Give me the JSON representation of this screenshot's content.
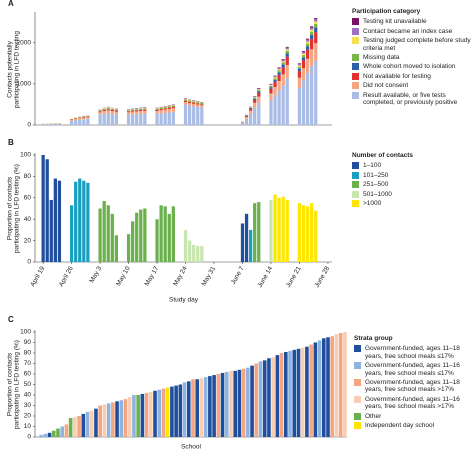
{
  "chart_data": [
    {
      "type": "stacked_bar",
      "panel_label": "A",
      "ylabel": [
        "Contacts potentially",
        "participating in LFD testing"
      ],
      "legend_title": "Participation category",
      "x": [
        0,
        1,
        2,
        3,
        4,
        7,
        8,
        9,
        10,
        11,
        14,
        15,
        16,
        17,
        18,
        21,
        22,
        23,
        24,
        25,
        28,
        29,
        30,
        31,
        32,
        35,
        36,
        37,
        38,
        39,
        49,
        50,
        51,
        52,
        53,
        56,
        57,
        58,
        59,
        60,
        63,
        64,
        65,
        66,
        67
      ],
      "xlim": [
        -2,
        71
      ],
      "ylim": [
        0,
        2700
      ],
      "yticks": [
        0,
        1000,
        2000
      ],
      "series": [
        {
          "name": "Testing kit unavailable",
          "color": "#7a1060",
          "values": [
            0,
            0,
            0,
            0,
            0,
            0,
            0,
            0,
            2,
            2,
            0,
            0,
            5,
            0,
            0,
            5,
            5,
            5,
            5,
            5,
            5,
            5,
            5,
            5,
            5,
            5,
            5,
            5,
            5,
            5,
            0,
            0,
            5,
            10,
            15,
            10,
            15,
            20,
            20,
            20,
            20,
            20,
            20,
            30,
            30
          ]
        },
        {
          "name": "Contact became an index case",
          "color": "#a070c0",
          "values": [
            0,
            0,
            1,
            1,
            1,
            0,
            3,
            5,
            5,
            5,
            10,
            10,
            10,
            10,
            10,
            10,
            10,
            10,
            10,
            10,
            10,
            10,
            10,
            10,
            10,
            10,
            10,
            10,
            10,
            10,
            0,
            5,
            5,
            10,
            15,
            20,
            20,
            25,
            30,
            40,
            30,
            40,
            50,
            50,
            50
          ]
        },
        {
          "name": "Testing judged complete before study criteria met",
          "color": "#f5e050",
          "values": [
            0,
            0,
            1,
            1,
            1,
            5,
            5,
            5,
            6,
            6,
            10,
            15,
            15,
            15,
            10,
            10,
            10,
            10,
            10,
            15,
            10,
            10,
            10,
            10,
            10,
            15,
            10,
            10,
            10,
            10,
            0,
            5,
            10,
            15,
            20,
            20,
            25,
            30,
            30,
            40,
            30,
            40,
            50,
            50,
            60
          ]
        },
        {
          "name": "Missing data",
          "color": "#7ab648",
          "values": [
            2,
            2,
            2,
            2,
            2,
            10,
            10,
            10,
            12,
            12,
            25,
            25,
            25,
            25,
            25,
            20,
            25,
            25,
            25,
            25,
            25,
            25,
            30,
            30,
            30,
            30,
            30,
            30,
            30,
            30,
            5,
            10,
            15,
            25,
            30,
            30,
            40,
            45,
            50,
            60,
            50,
            60,
            70,
            80,
            90
          ]
        },
        {
          "name": "Whole cohort moved to isolation",
          "color": "#2b5fa8",
          "values": [
            0,
            0,
            0,
            0,
            0,
            0,
            0,
            0,
            0,
            0,
            0,
            0,
            0,
            0,
            0,
            0,
            0,
            0,
            0,
            0,
            0,
            0,
            0,
            0,
            0,
            0,
            0,
            0,
            0,
            0,
            0,
            10,
            20,
            30,
            40,
            40,
            50,
            60,
            70,
            80,
            60,
            70,
            80,
            100,
            110
          ]
        },
        {
          "name": "Not available for testing",
          "color": "#e03030",
          "values": [
            3,
            3,
            3,
            4,
            4,
            10,
            12,
            15,
            15,
            15,
            25,
            30,
            30,
            30,
            30,
            25,
            25,
            30,
            30,
            30,
            30,
            30,
            30,
            35,
            35,
            30,
            30,
            30,
            25,
            25,
            10,
            25,
            45,
            70,
            90,
            110,
            130,
            150,
            170,
            200,
            160,
            190,
            220,
            250,
            270
          ]
        },
        {
          "name": "Did not consent",
          "color": "#f4a582",
          "values": [
            5,
            5,
            6,
            7,
            7,
            25,
            30,
            35,
            40,
            40,
            60,
            70,
            75,
            70,
            65,
            60,
            65,
            65,
            70,
            70,
            70,
            75,
            80,
            85,
            90,
            60,
            55,
            55,
            50,
            50,
            15,
            45,
            80,
            120,
            150,
            170,
            200,
            230,
            270,
            320,
            250,
            300,
            350,
            400,
            430
          ]
        },
        {
          "name": "Result available, or five tests completed, or previously positive",
          "color": "#a9bde6",
          "values": [
            20,
            20,
            22,
            25,
            25,
            100,
            120,
            130,
            140,
            150,
            250,
            270,
            280,
            270,
            260,
            250,
            260,
            265,
            270,
            275,
            270,
            285,
            295,
            305,
            320,
            500,
            480,
            460,
            450,
            430,
            50,
            150,
            270,
            420,
            540,
            600,
            720,
            840,
            960,
            1140,
            900,
            1080,
            1260,
            1440,
            1560
          ]
        }
      ]
    },
    {
      "type": "bar",
      "panel_label": "B",
      "ylabel": [
        "Proportion of contacts",
        "participating in LFD testing (%)"
      ],
      "xlabel": "Study day",
      "legend_title": "Number of contacts",
      "legend": [
        {
          "name": "1–100",
          "color": "#1f4e9c"
        },
        {
          "name": "101–250",
          "color": "#1a9fc0"
        },
        {
          "name": "251–500",
          "color": "#6ab04c"
        },
        {
          "name": "501–1000",
          "color": "#c8e6b0"
        },
        {
          "name": ">1000",
          "color": "#ffe600"
        }
      ],
      "x": [
        0,
        1,
        2,
        3,
        4,
        7,
        8,
        9,
        10,
        11,
        14,
        15,
        16,
        17,
        18,
        21,
        22,
        23,
        24,
        25,
        28,
        29,
        30,
        31,
        32,
        35,
        36,
        37,
        38,
        39,
        49,
        50,
        51,
        52,
        53,
        56,
        57,
        58,
        59,
        60,
        63,
        64,
        65,
        66,
        67
      ],
      "values": [
        100,
        96,
        58,
        78,
        76,
        53,
        75,
        78,
        76,
        74,
        50,
        57,
        53,
        45,
        25,
        26,
        38,
        46,
        49,
        50,
        40,
        53,
        52,
        45,
        52,
        30,
        20,
        16,
        15,
        15,
        36,
        45,
        30,
        55,
        56,
        58,
        63,
        60,
        61,
        58,
        55,
        53,
        52,
        55,
        48
      ],
      "colors": [
        "#1f4e9c",
        "#1f4e9c",
        "#1f4e9c",
        "#1f4e9c",
        "#1f4e9c",
        "#1a9fc0",
        "#1a9fc0",
        "#1a9fc0",
        "#1a9fc0",
        "#1a9fc0",
        "#6ab04c",
        "#6ab04c",
        "#6ab04c",
        "#6ab04c",
        "#6ab04c",
        "#6ab04c",
        "#6ab04c",
        "#6ab04c",
        "#6ab04c",
        "#6ab04c",
        "#6ab04c",
        "#6ab04c",
        "#6ab04c",
        "#6ab04c",
        "#6ab04c",
        "#c8e6b0",
        "#c8e6b0",
        "#c8e6b0",
        "#c8e6b0",
        "#c8e6b0",
        "#1f4e9c",
        "#1f4e9c",
        "#1a9fc0",
        "#6ab04c",
        "#6ab04c",
        "#c8e6b0",
        "#ffe600",
        "#ffe600",
        "#ffe600",
        "#ffe600",
        "#ffe600",
        "#ffe600",
        "#ffe600",
        "#ffe600",
        "#ffe600"
      ],
      "xlim": [
        -2,
        71
      ],
      "ylim": [
        0,
        100
      ],
      "yticks": [
        0,
        20,
        40,
        60,
        80,
        100
      ],
      "xticks": [
        {
          "value": 0,
          "label": "April 19"
        },
        {
          "value": 7,
          "label": "April 26"
        },
        {
          "value": 14,
          "label": "May 3"
        },
        {
          "value": 21,
          "label": "May 10"
        },
        {
          "value": 28,
          "label": "May 17"
        },
        {
          "value": 35,
          "label": "May 24"
        },
        {
          "value": 42,
          "label": "May 31"
        },
        {
          "value": 49,
          "label": "June 7"
        },
        {
          "value": 56,
          "label": "June 14"
        },
        {
          "value": 63,
          "label": "June 21"
        },
        {
          "value": 70,
          "label": "June 28"
        }
      ]
    },
    {
      "type": "bar",
      "panel_label": "C",
      "ylabel": [
        "Proportion of contacts",
        "participating in LFD testing (%)"
      ],
      "xlabel": "School",
      "legend_title": "Strata group",
      "legend": [
        {
          "name": "Government-funded, ages 11–18 years, free school meals ≤17%",
          "color": "#1f4e9c"
        },
        {
          "name": "Government-funded, ages 11–16 years, free school meals ≤17%",
          "color": "#8fb3e0"
        },
        {
          "name": "Government-funded, ages 11–18 years, free school meals >17%",
          "color": "#f4a582"
        },
        {
          "name": "Government-funded, ages 11–16 years, free school meals >17%",
          "color": "#f9cdb0"
        },
        {
          "name": "Other",
          "color": "#6ab04c"
        },
        {
          "name": "Independent day school",
          "color": "#ffe600"
        }
      ],
      "values": [
        2,
        3,
        4,
        6,
        8,
        10,
        12,
        18,
        19,
        20,
        22,
        24,
        25,
        27,
        30,
        31,
        32,
        33,
        34,
        35,
        36,
        38,
        40,
        40,
        41,
        42,
        43,
        44,
        45,
        46,
        47,
        48,
        49,
        50,
        52,
        53,
        55,
        55,
        56,
        57,
        58,
        59,
        60,
        61,
        62,
        63,
        63,
        64,
        65,
        66,
        68,
        70,
        72,
        73,
        75,
        76,
        78,
        80,
        81,
        82,
        83,
        84,
        85,
        86,
        88,
        90,
        92,
        94,
        95,
        96,
        98,
        99,
        100
      ],
      "colors": [
        "#8fb3e0",
        "#8fb3e0",
        "#1f4e9c",
        "#6ab04c",
        "#6ab04c",
        "#8fb3e0",
        "#f4a582",
        "#6ab04c",
        "#f9cdb0",
        "#f4a582",
        "#1f4e9c",
        "#8fb3e0",
        "#f9cdb0",
        "#1f4e9c",
        "#f4a582",
        "#f9cdb0",
        "#8fb3e0",
        "#f4a582",
        "#1f4e9c",
        "#8fb3e0",
        "#f4a582",
        "#f9cdb0",
        "#8fb3e0",
        "#6ab04c",
        "#1f4e9c",
        "#f4a582",
        "#f9cdb0",
        "#1f4e9c",
        "#8fb3e0",
        "#f4a582",
        "#ffe600",
        "#1f4e9c",
        "#1f4e9c",
        "#1f4e9c",
        "#8fb3e0",
        "#1f4e9c",
        "#f4a582",
        "#1f4e9c",
        "#f9cdb0",
        "#8fb3e0",
        "#1f4e9c",
        "#1f4e9c",
        "#f4a582",
        "#1f4e9c",
        "#8fb3e0",
        "#f9cdb0",
        "#1f4e9c",
        "#1f4e9c",
        "#f4a582",
        "#8fb3e0",
        "#1f4e9c",
        "#f4a582",
        "#8fb3e0",
        "#1f4e9c",
        "#1f4e9c",
        "#f9cdb0",
        "#1f4e9c",
        "#f4a582",
        "#1f4e9c",
        "#8fb3e0",
        "#1f4e9c",
        "#1f4e9c",
        "#f9cdb0",
        "#1f4e9c",
        "#f4a582",
        "#1f4e9c",
        "#8fb3e0",
        "#1f4e9c",
        "#1f4e9c",
        "#f4a582",
        "#f9cdb0",
        "#f4a582",
        "#f9cdb0"
      ],
      "ylim": [
        0,
        100
      ],
      "yticks": [
        0,
        10,
        20,
        30,
        40,
        50,
        60,
        70,
        80,
        90,
        100
      ]
    }
  ]
}
